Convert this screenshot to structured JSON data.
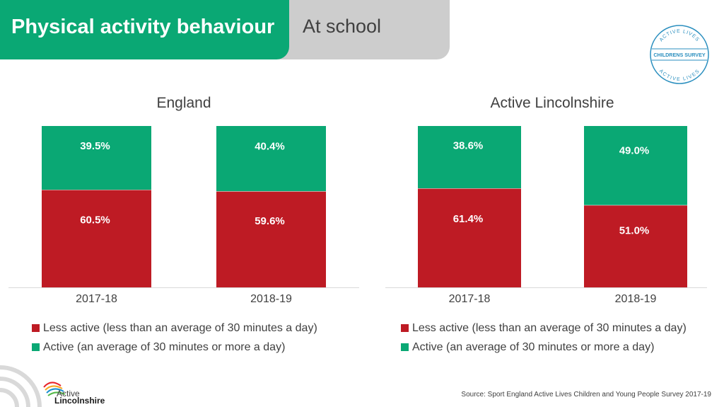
{
  "header": {
    "title": "Physical activity behaviour",
    "subtitle": "At school"
  },
  "badge": {
    "top_text": "ACTIVE LIVES",
    "middle_text": "CHILDRENS SURVEY",
    "bottom_text": "ACTIVE LIVES"
  },
  "logo": {
    "line1": "Active",
    "line2": "Lincolnshire"
  },
  "colors": {
    "less_active": "#be1b24",
    "active": "#0aa874",
    "green_header": "#0aa874",
    "grey_header": "#cdcdcd"
  },
  "chart_data": [
    {
      "type": "bar",
      "stacked": true,
      "title": "England",
      "categories": [
        "2017-18",
        "2018-19"
      ],
      "series": [
        {
          "name": "Less active (less than an average of 30 minutes a day)",
          "values": [
            60.5,
            59.6
          ],
          "labels": [
            "60.5%",
            "59.6%"
          ]
        },
        {
          "name": "Active (an average of 30 minutes or more a day)",
          "values": [
            39.5,
            40.4
          ],
          "labels": [
            "39.5%",
            "40.4%"
          ]
        }
      ],
      "ylim": [
        0,
        100
      ],
      "legend": "bottom"
    },
    {
      "type": "bar",
      "stacked": true,
      "title": "Active Lincolnshire",
      "categories": [
        "2017-18",
        "2018-19"
      ],
      "series": [
        {
          "name": "Less active (less than an average of 30 minutes a day)",
          "values": [
            61.4,
            51.0
          ],
          "labels": [
            "61.4%",
            "51.0%"
          ]
        },
        {
          "name": "Active (an average of 30 minutes or more a day)",
          "values": [
            38.6,
            49.0
          ],
          "labels": [
            "38.6%",
            "49.0%"
          ]
        }
      ],
      "ylim": [
        0,
        100
      ],
      "legend": "bottom"
    }
  ],
  "footer": {
    "source": "Source: Sport England Active Lives Children and Young People Survey 2017-19"
  }
}
